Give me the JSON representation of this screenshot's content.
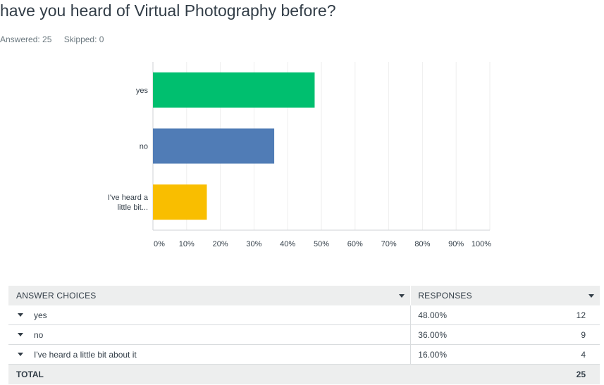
{
  "question": {
    "title": "have you heard of Virtual Photography before?",
    "answered_label": "Answered: 25",
    "skipped_label": "Skipped: 0"
  },
  "chart_data": {
    "type": "bar",
    "orientation": "horizontal",
    "categories": [
      "yes",
      "no",
      "I've heard a little bit..."
    ],
    "category_lines": [
      [
        "yes"
      ],
      [
        "no"
      ],
      [
        "I've heard a",
        "little bit..."
      ]
    ],
    "values": [
      48,
      36,
      16
    ],
    "colors": [
      "#00bf6f",
      "#507cb6",
      "#f9be00"
    ],
    "xlim": [
      0,
      100
    ],
    "ticks": [
      "0%",
      "10%",
      "20%",
      "30%",
      "40%",
      "50%",
      "60%",
      "70%",
      "80%",
      "90%",
      "100%"
    ],
    "grid": true
  },
  "table": {
    "header_choices": "ANSWER CHOICES",
    "header_responses": "RESPONSES",
    "rows": [
      {
        "choice": "yes",
        "percent": "48.00%",
        "count": "12"
      },
      {
        "choice": "no",
        "percent": "36.00%",
        "count": "9"
      },
      {
        "choice": "I've heard a little bit about it",
        "percent": "16.00%",
        "count": "4"
      }
    ],
    "total_label": "TOTAL",
    "total_count": "25"
  }
}
